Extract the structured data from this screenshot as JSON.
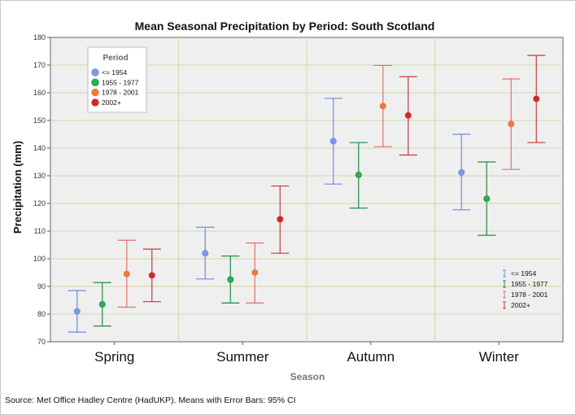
{
  "chart_data": {
    "type": "errorbar",
    "title": "Mean Seasonal Precipitation by Period: South Scotland",
    "xlabel": "Season",
    "ylabel": "Precipitation (mm)",
    "ylim": [
      70,
      180
    ],
    "yticks": [
      70,
      80,
      90,
      100,
      110,
      120,
      130,
      140,
      150,
      160,
      170,
      180
    ],
    "categories": [
      "Spring",
      "Summer",
      "Autumn",
      "Winter"
    ],
    "legend_title": "Period",
    "series": [
      {
        "name": "<= 1954",
        "color": "#6f89e4",
        "marker_color": "#7f97ea",
        "means": [
          81,
          102,
          142.5,
          131.2
        ],
        "lower": [
          73.5,
          92.7,
          127,
          117.7
        ],
        "upper": [
          88.5,
          111.4,
          158,
          145
        ]
      },
      {
        "name": "1955 - 1977",
        "color": "#1e8a46",
        "marker_color": "#2fae53",
        "means": [
          83.5,
          92.5,
          130.3,
          121.7
        ],
        "lower": [
          75.7,
          84,
          118.3,
          108.5
        ],
        "upper": [
          91.4,
          101,
          142,
          135
        ]
      },
      {
        "name": "1978 - 2001",
        "color": "#e07070",
        "marker_color": "#f47a2a",
        "means": [
          94.5,
          95,
          155.2,
          148.7
        ],
        "lower": [
          82.5,
          84,
          140.5,
          132.3
        ],
        "upper": [
          106.7,
          105.7,
          169.9,
          165
        ]
      },
      {
        "name": "2002+",
        "color": "#c43b3b",
        "marker_color": "#d3262e",
        "means": [
          94,
          114.3,
          151.8,
          157.8
        ],
        "lower": [
          84.5,
          102,
          137.5,
          142
        ],
        "upper": [
          103.5,
          126.3,
          165.8,
          173.5
        ]
      }
    ]
  },
  "source_note": "Source: Met Office Hadley Centre (HadUKP). Means with Error Bars: 95% CI"
}
